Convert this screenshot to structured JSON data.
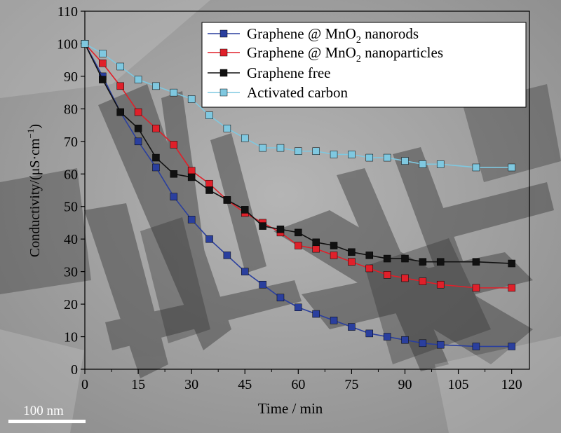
{
  "chart_data": {
    "type": "line",
    "title": "",
    "xlabel": "Time / min",
    "ylabel_prefix": "Conductivity/(μS·cm",
    "ylabel_sup": "−1",
    "ylabel_suffix": ")",
    "xlim": [
      0,
      125
    ],
    "ylim": [
      0,
      110
    ],
    "xticks": [
      0,
      15,
      30,
      45,
      60,
      75,
      90,
      105,
      120
    ],
    "yticks": [
      0,
      10,
      20,
      30,
      40,
      50,
      60,
      70,
      80,
      90,
      100,
      110
    ],
    "grid": false,
    "legend_position": "top-right",
    "series": [
      {
        "label_parts": [
          "Graphene @ MnO",
          "2",
          " nanorods"
        ],
        "color": "#2a3f9e",
        "points": [
          [
            0,
            100
          ],
          [
            5,
            90
          ],
          [
            10,
            79
          ],
          [
            15,
            70
          ],
          [
            20,
            62
          ],
          [
            25,
            53
          ],
          [
            30,
            46
          ],
          [
            35,
            40
          ],
          [
            40,
            35
          ],
          [
            45,
            30
          ],
          [
            50,
            26
          ],
          [
            55,
            22
          ],
          [
            60,
            19
          ],
          [
            65,
            17
          ],
          [
            70,
            15
          ],
          [
            75,
            13
          ],
          [
            80,
            11
          ],
          [
            85,
            10
          ],
          [
            90,
            9
          ],
          [
            95,
            8
          ],
          [
            100,
            7.5
          ],
          [
            110,
            7
          ],
          [
            120,
            7
          ]
        ]
      },
      {
        "label_parts": [
          "Graphene @ MnO",
          "2",
          " nanoparticles"
        ],
        "color": "#e0202a",
        "points": [
          [
            0,
            100
          ],
          [
            5,
            94
          ],
          [
            10,
            87
          ],
          [
            15,
            79
          ],
          [
            20,
            74
          ],
          [
            25,
            69
          ],
          [
            30,
            61
          ],
          [
            35,
            57
          ],
          [
            40,
            52
          ],
          [
            45,
            48
          ],
          [
            50,
            45
          ],
          [
            55,
            42
          ],
          [
            60,
            38
          ],
          [
            65,
            37
          ],
          [
            70,
            35
          ],
          [
            75,
            33
          ],
          [
            80,
            31
          ],
          [
            85,
            29
          ],
          [
            90,
            28
          ],
          [
            95,
            27
          ],
          [
            100,
            26
          ],
          [
            110,
            25
          ],
          [
            120,
            25
          ]
        ]
      },
      {
        "label_parts": [
          "Graphene free"
        ],
        "color": "#111111",
        "points": [
          [
            0,
            100
          ],
          [
            5,
            89
          ],
          [
            10,
            79
          ],
          [
            15,
            74
          ],
          [
            20,
            65
          ],
          [
            25,
            60
          ],
          [
            30,
            59
          ],
          [
            35,
            55
          ],
          [
            40,
            52
          ],
          [
            45,
            49
          ],
          [
            50,
            44
          ],
          [
            55,
            43
          ],
          [
            60,
            42
          ],
          [
            65,
            39
          ],
          [
            70,
            38
          ],
          [
            75,
            36
          ],
          [
            80,
            35
          ],
          [
            85,
            34
          ],
          [
            90,
            34
          ],
          [
            95,
            33
          ],
          [
            100,
            33
          ],
          [
            110,
            33
          ],
          [
            120,
            32.5
          ]
        ]
      },
      {
        "label_parts": [
          "Activated carbon"
        ],
        "color": "#7fc8e0",
        "points": [
          [
            0,
            100
          ],
          [
            5,
            97
          ],
          [
            10,
            93
          ],
          [
            15,
            89
          ],
          [
            20,
            87
          ],
          [
            25,
            85
          ],
          [
            30,
            83
          ],
          [
            35,
            78
          ],
          [
            40,
            74
          ],
          [
            45,
            71
          ],
          [
            50,
            68
          ],
          [
            55,
            68
          ],
          [
            60,
            67
          ],
          [
            65,
            67
          ],
          [
            70,
            66
          ],
          [
            75,
            66
          ],
          [
            80,
            65
          ],
          [
            85,
            65
          ],
          [
            90,
            64
          ],
          [
            95,
            63
          ],
          [
            100,
            63
          ],
          [
            110,
            62
          ],
          [
            120,
            62
          ]
        ]
      }
    ]
  },
  "scalebar": {
    "label": "100 nm"
  }
}
